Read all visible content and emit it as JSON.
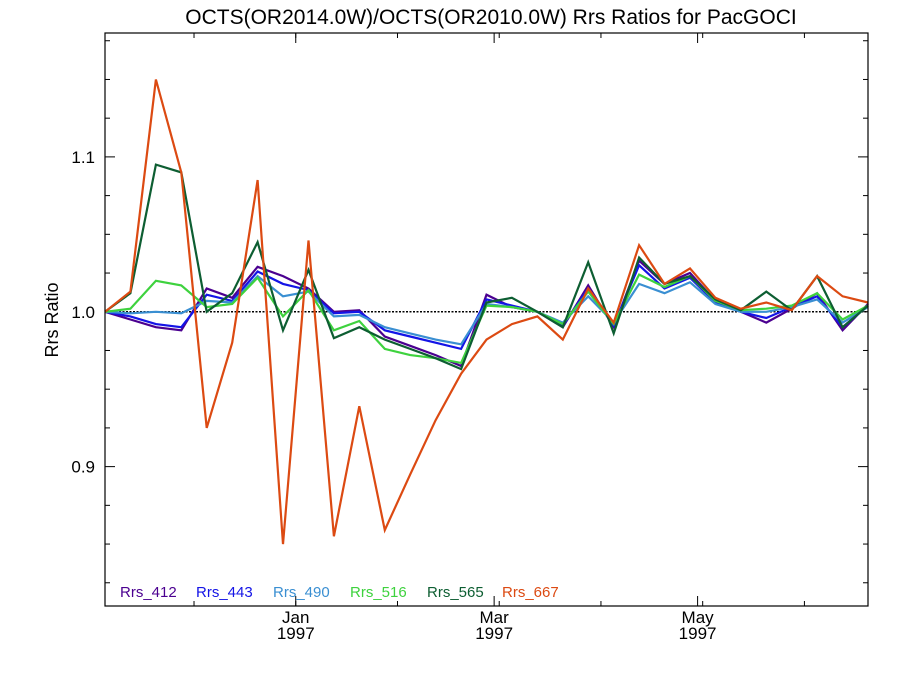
{
  "chart_data": {
    "type": "line",
    "title": "OCTS(OR2014.0W)/OCTS(OR2010.0W)  Rrs Ratios for PacGOCI",
    "xlabel": "",
    "ylabel": "Rrs Ratio",
    "ylim": [
      0.81,
      1.18
    ],
    "xlim": [
      0,
      30
    ],
    "y_ticks": [
      {
        "value": 0.9,
        "label": "0.9"
      },
      {
        "value": 1.0,
        "label": "1.0"
      },
      {
        "value": 1.1,
        "label": "1.1"
      }
    ],
    "x_ticks": [
      {
        "value": 7.5,
        "month": "Jan",
        "year": "1997"
      },
      {
        "value": 15.3,
        "month": "Mar",
        "year": "1997"
      },
      {
        "value": 23.3,
        "month": "May",
        "year": "1997"
      }
    ],
    "reference_line": 1.0,
    "x": [
      0,
      1,
      2,
      3,
      4,
      5,
      6,
      7,
      8,
      9,
      10,
      11,
      12,
      13,
      14,
      15,
      16,
      17,
      18,
      19,
      20,
      21,
      22,
      23,
      24,
      25,
      26,
      27,
      28,
      29,
      30
    ],
    "series": [
      {
        "name": "Rrs_412",
        "color": "#4b0090",
        "values": [
          1.0,
          0.995,
          0.99,
          0.988,
          1.015,
          1.009,
          1.029,
          1.023,
          1.015,
          1.0,
          1.001,
          0.984,
          0.978,
          0.972,
          0.965,
          1.011,
          1.003,
          1.0,
          0.99,
          1.017,
          0.99,
          1.033,
          1.018,
          1.025,
          1.007,
          1.0,
          0.993,
          1.002,
          1.012,
          0.988,
          1.005
        ]
      },
      {
        "name": "Rrs_443",
        "color": "#1414e6",
        "values": [
          1.0,
          0.997,
          0.992,
          0.99,
          1.011,
          1.007,
          1.026,
          1.018,
          1.014,
          0.999,
          1.0,
          0.988,
          0.984,
          0.98,
          0.976,
          1.008,
          1.004,
          1.0,
          0.991,
          1.015,
          0.991,
          1.03,
          1.015,
          1.022,
          1.006,
          1.0,
          0.996,
          1.003,
          1.01,
          0.99,
          1.004
        ]
      },
      {
        "name": "Rrs_490",
        "color": "#3a8fd2",
        "values": [
          1.0,
          0.999,
          1.0,
          0.999,
          1.007,
          1.006,
          1.023,
          1.01,
          1.013,
          0.997,
          0.998,
          0.99,
          0.986,
          0.982,
          0.979,
          1.005,
          1.003,
          1.0,
          0.993,
          1.01,
          0.993,
          1.018,
          1.012,
          1.019,
          1.005,
          1.0,
          1.0,
          1.003,
          1.008,
          0.993,
          1.003
        ]
      },
      {
        "name": "Rrs_516",
        "color": "#3ed23e",
        "values": [
          1.0,
          1.002,
          1.02,
          1.017,
          1.003,
          1.005,
          1.022,
          0.997,
          1.014,
          0.988,
          0.994,
          0.976,
          0.972,
          0.97,
          0.967,
          1.004,
          1.003,
          1.0,
          0.992,
          1.013,
          0.992,
          1.024,
          1.016,
          1.023,
          1.007,
          1.001,
          1.002,
          1.004,
          1.012,
          0.995,
          1.004
        ]
      },
      {
        "name": "Rrs_565",
        "color": "#0d5e32",
        "values": [
          1.0,
          1.012,
          1.095,
          1.09,
          1.0,
          1.012,
          1.045,
          0.988,
          1.027,
          0.983,
          0.99,
          0.982,
          0.976,
          0.97,
          0.963,
          1.006,
          1.009,
          1.0,
          0.99,
          1.032,
          0.986,
          1.035,
          1.018,
          1.023,
          1.008,
          1.001,
          1.013,
          1.001,
          1.023,
          0.99,
          1.004
        ]
      },
      {
        "name": "Rrs_667",
        "color": "#dc4a12",
        "values": [
          1.0,
          1.013,
          1.15,
          1.09,
          0.925,
          0.98,
          1.085,
          0.85,
          1.046,
          0.855,
          0.939,
          0.859,
          0.895,
          0.93,
          0.96,
          0.982,
          0.992,
          0.997,
          0.982,
          1.015,
          0.993,
          1.043,
          1.018,
          1.028,
          1.009,
          1.002,
          1.006,
          1.001,
          1.023,
          1.01,
          1.006
        ]
      }
    ]
  }
}
